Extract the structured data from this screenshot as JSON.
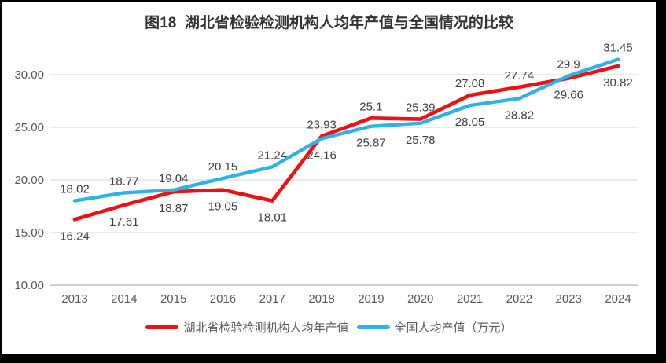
{
  "chart_data": {
    "type": "line",
    "title": "图18  湖北省检验检测机构人均年产值与全国情况的比较",
    "categories": [
      "2013",
      "2014",
      "2015",
      "2016",
      "2017",
      "2018",
      "2019",
      "2020",
      "2021",
      "2022",
      "2023",
      "2024"
    ],
    "series": [
      {
        "id": "hubei",
        "name": "湖北省检验检测机构人均年产值",
        "color": "#ED1111",
        "label_position": "below",
        "values": [
          16.24,
          17.61,
          18.87,
          19.05,
          18.01,
          24.16,
          25.87,
          25.78,
          28.05,
          28.82,
          29.66,
          30.82
        ],
        "labels": [
          "16.24",
          "17.61",
          "18.87",
          "19.05",
          "18.01",
          "24.16",
          "25.87",
          "25.78",
          "28.05",
          "28.82",
          "29.66",
          "30.82"
        ]
      },
      {
        "id": "national",
        "name": "全国人均产值（万元）",
        "color": "#2FB1E9",
        "label_position": "above",
        "values": [
          18.02,
          18.77,
          19.04,
          20.15,
          21.24,
          23.93,
          25.1,
          25.39,
          27.08,
          27.74,
          29.9,
          31.45
        ],
        "labels": [
          "18.02",
          "18.77",
          "19.04",
          "20.15",
          "21.24",
          "23.93",
          "25.1",
          "25.39",
          "27.08",
          "27.74",
          "29.9",
          "31.45"
        ]
      }
    ],
    "yticks": [
      {
        "value": 10,
        "label": "10.00"
      },
      {
        "value": 15,
        "label": "15.00"
      },
      {
        "value": 20,
        "label": "20.00"
      },
      {
        "value": 25,
        "label": "25.00"
      },
      {
        "value": 30,
        "label": "30.00"
      }
    ],
    "ylim": [
      10,
      32.6
    ],
    "xlabel": "",
    "ylabel": "",
    "grid": true,
    "legend_position": "bottom",
    "colors": {
      "axis_text": "#595959",
      "data_label_text": "#404040",
      "gridline": "#DDDDDD",
      "axis_line": "#BFBFBF",
      "title_text": "#333333",
      "frame_border": "#000000",
      "background": "#FFFFFF"
    }
  }
}
